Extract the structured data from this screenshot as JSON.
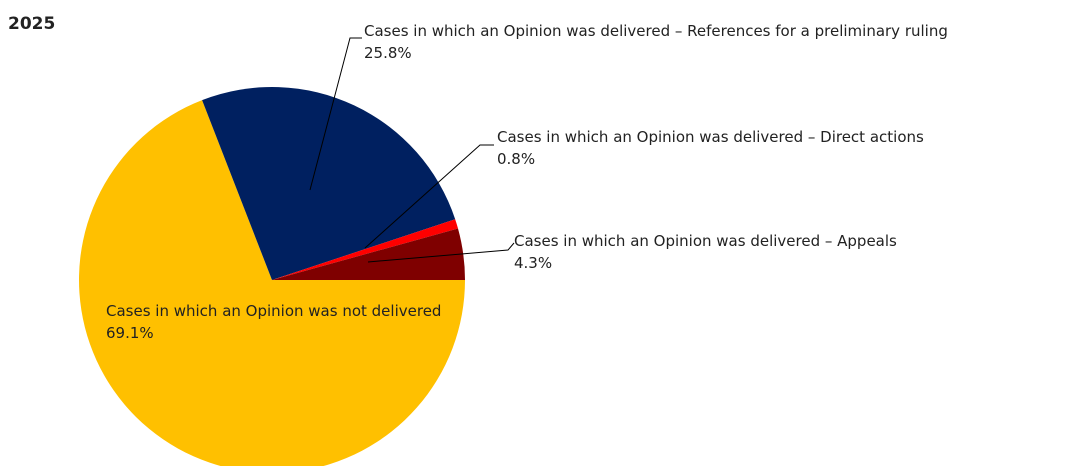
{
  "chart_data": {
    "type": "pie",
    "title": "2025",
    "categories": [
      "Cases in which an Opinion was not delivered",
      "Cases in which an Opinion was delivered – References for a preliminary ruling",
      "Cases in which an Opinion was delivered – Direct actions",
      "Cases in which an Opinion was delivered – Appeals"
    ],
    "values": [
      69.1,
      25.8,
      0.8,
      4.3
    ],
    "value_labels": [
      "69.1%",
      "25.8%",
      "0.8%",
      "4.3%"
    ],
    "colors": [
      "#ffc000",
      "#002060",
      "#ff0000",
      "#7f0000"
    ]
  }
}
